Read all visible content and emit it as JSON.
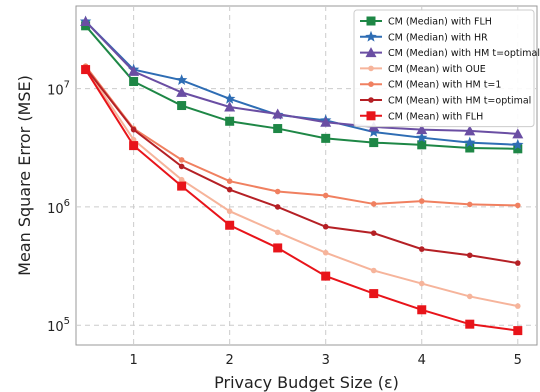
{
  "chart_data": {
    "type": "line",
    "xlabel": "Privacy Budget Size (ε)",
    "ylabel": "Mean Square Error (MSE)",
    "y_scale": "log",
    "xlim": [
      0.4,
      5.2
    ],
    "ylim": [
      68000,
      50000000
    ],
    "x_ticks": [
      1,
      2,
      3,
      4,
      5
    ],
    "x_tick_labels": [
      "1",
      "2",
      "3",
      "4",
      "5"
    ],
    "y_ticks": [
      100000,
      1000000,
      10000000
    ],
    "grid": true,
    "legend_position": "top-right",
    "x": [
      0.5,
      1.0,
      1.5,
      2.0,
      2.5,
      3.0,
      3.5,
      4.0,
      4.5,
      5.0
    ],
    "series": [
      {
        "name": "CM (Median) with FLH",
        "color": "#1e8746",
        "marker": "square",
        "values": [
          34000000,
          11500000,
          7200000,
          5300000,
          4600000,
          3800000,
          3500000,
          3350000,
          3150000,
          3100000
        ]
      },
      {
        "name": "CM (Median) with HR",
        "color": "#2e6db4",
        "marker": "star",
        "values": [
          37000000,
          14500000,
          11800000,
          8200000,
          6000000,
          5400000,
          4300000,
          3850000,
          3500000,
          3350000
        ]
      },
      {
        "name": "CM (Median) with HM t=optimal",
        "color": "#6a4ea3",
        "marker": "triangle",
        "values": [
          37000000,
          14000000,
          9300000,
          7000000,
          6100000,
          5200000,
          4750000,
          4500000,
          4400000,
          4150000
        ]
      },
      {
        "name": "CM (Mean) with OUE",
        "color": "#f6b49b",
        "marker": "circle",
        "values": [
          15000000,
          3700000,
          1700000,
          920000,
          610000,
          410000,
          290000,
          225000,
          175000,
          145000
        ]
      },
      {
        "name": "CM (Mean) with HM t=1",
        "color": "#f08060",
        "marker": "circle",
        "values": [
          15500000,
          4600000,
          2500000,
          1650000,
          1350000,
          1250000,
          1060000,
          1120000,
          1050000,
          1030000
        ]
      },
      {
        "name": "CM (Mean) with HM t=optimal",
        "color": "#b52025",
        "marker": "circle",
        "values": [
          15000000,
          4500000,
          2200000,
          1400000,
          1000000,
          680000,
          600000,
          440000,
          390000,
          335000
        ]
      },
      {
        "name": "CM (Mean) with FLH",
        "color": "#e8141a",
        "marker": "square",
        "values": [
          14500000,
          3300000,
          1500000,
          700000,
          450000,
          260000,
          185000,
          135000,
          102000,
          90000
        ]
      }
    ]
  }
}
